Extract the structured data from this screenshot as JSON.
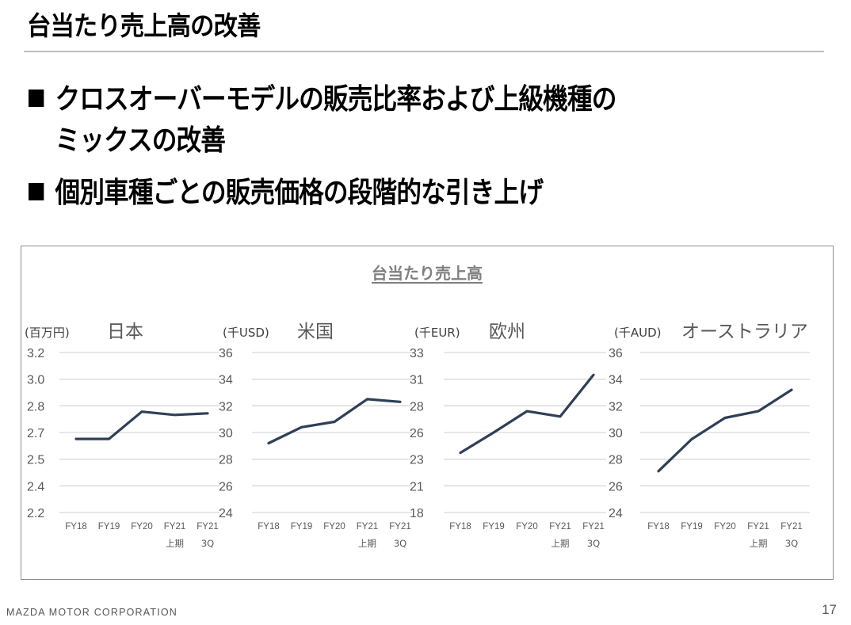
{
  "slide": {
    "title": "台当たり売上高の改善",
    "bullets": [
      {
        "line1": "クロスオーバーモデルの販売比率および上級機種の",
        "line2": "ミックスの改善"
      },
      {
        "line1": "個別車種ごとの販売価格の段階的な引き上げ",
        "line2": ""
      }
    ],
    "panel_title": "台当たり売上高",
    "footer_brand": "MAZDA MOTOR CORPORATION",
    "page_number": "17"
  },
  "colors": {
    "line": "#2e4057",
    "grid": "#d9d9d9",
    "axis_text": "#595959",
    "region_text": "#595959"
  },
  "chart_data": [
    {
      "type": "line",
      "title": "日本",
      "unit": "(百万円)",
      "categories": [
        "FY18",
        "FY19",
        "FY20",
        "FY21 上期",
        "FY21 3Q"
      ],
      "category_lines": [
        [
          "FY18",
          ""
        ],
        [
          "FY19",
          ""
        ],
        [
          "FY20",
          ""
        ],
        [
          "FY21",
          "上期"
        ],
        [
          "FY21",
          "3Q"
        ]
      ],
      "yticks": [
        "3.2",
        "3.0",
        "2.8",
        "2.7",
        "2.5",
        "2.4",
        "2.2"
      ],
      "ylim": [
        2.2,
        3.2
      ],
      "series": [
        {
          "name": "台当たり売上高",
          "values": [
            2.66,
            2.66,
            2.83,
            2.81,
            2.82
          ]
        }
      ],
      "grid": true,
      "legend": "none"
    },
    {
      "type": "line",
      "title": "米国",
      "unit": "(千USD)",
      "categories": [
        "FY18",
        "FY19",
        "FY20",
        "FY21 上期",
        "FY21 3Q"
      ],
      "category_lines": [
        [
          "FY18",
          ""
        ],
        [
          "FY19",
          ""
        ],
        [
          "FY20",
          ""
        ],
        [
          "FY21",
          "上期"
        ],
        [
          "FY21",
          "3Q"
        ]
      ],
      "yticks": [
        "36",
        "34",
        "32",
        "30",
        "28",
        "26",
        "24"
      ],
      "ylim": [
        24,
        36
      ],
      "series": [
        {
          "name": "台当たり売上高",
          "values": [
            29.2,
            30.4,
            30.8,
            32.5,
            32.3
          ]
        }
      ],
      "grid": true,
      "legend": "none"
    },
    {
      "type": "line",
      "title": "欧州",
      "unit": "(千EUR)",
      "categories": [
        "FY18",
        "FY19",
        "FY20",
        "FY21 上期",
        "FY21 3Q"
      ],
      "category_lines": [
        [
          "FY18",
          ""
        ],
        [
          "FY19",
          ""
        ],
        [
          "FY20",
          ""
        ],
        [
          "FY21",
          "上期"
        ],
        [
          "FY21",
          "3Q"
        ]
      ],
      "yticks": [
        "33",
        "31",
        "28",
        "26",
        "23",
        "21",
        "18"
      ],
      "ylim": [
        18,
        33
      ],
      "series": [
        {
          "name": "台当たり売上高",
          "values": [
            23.6,
            25.5,
            27.5,
            27.0,
            30.9
          ]
        }
      ],
      "grid": true,
      "legend": "none"
    },
    {
      "type": "line",
      "title": "オーストラリア",
      "unit": "(千AUD)",
      "categories": [
        "FY18",
        "FY19",
        "FY20",
        "FY21 上期",
        "FY21 3Q"
      ],
      "category_lines": [
        [
          "FY18",
          ""
        ],
        [
          "FY19",
          ""
        ],
        [
          "FY20",
          ""
        ],
        [
          "FY21",
          "上期"
        ],
        [
          "FY21",
          "3Q"
        ]
      ],
      "yticks": [
        "36",
        "34",
        "32",
        "30",
        "28",
        "26",
        "24"
      ],
      "ylim": [
        24,
        36
      ],
      "series": [
        {
          "name": "台当たり売上高",
          "values": [
            27.1,
            29.5,
            31.1,
            31.6,
            33.2
          ]
        }
      ],
      "grid": true,
      "legend": "none"
    }
  ]
}
